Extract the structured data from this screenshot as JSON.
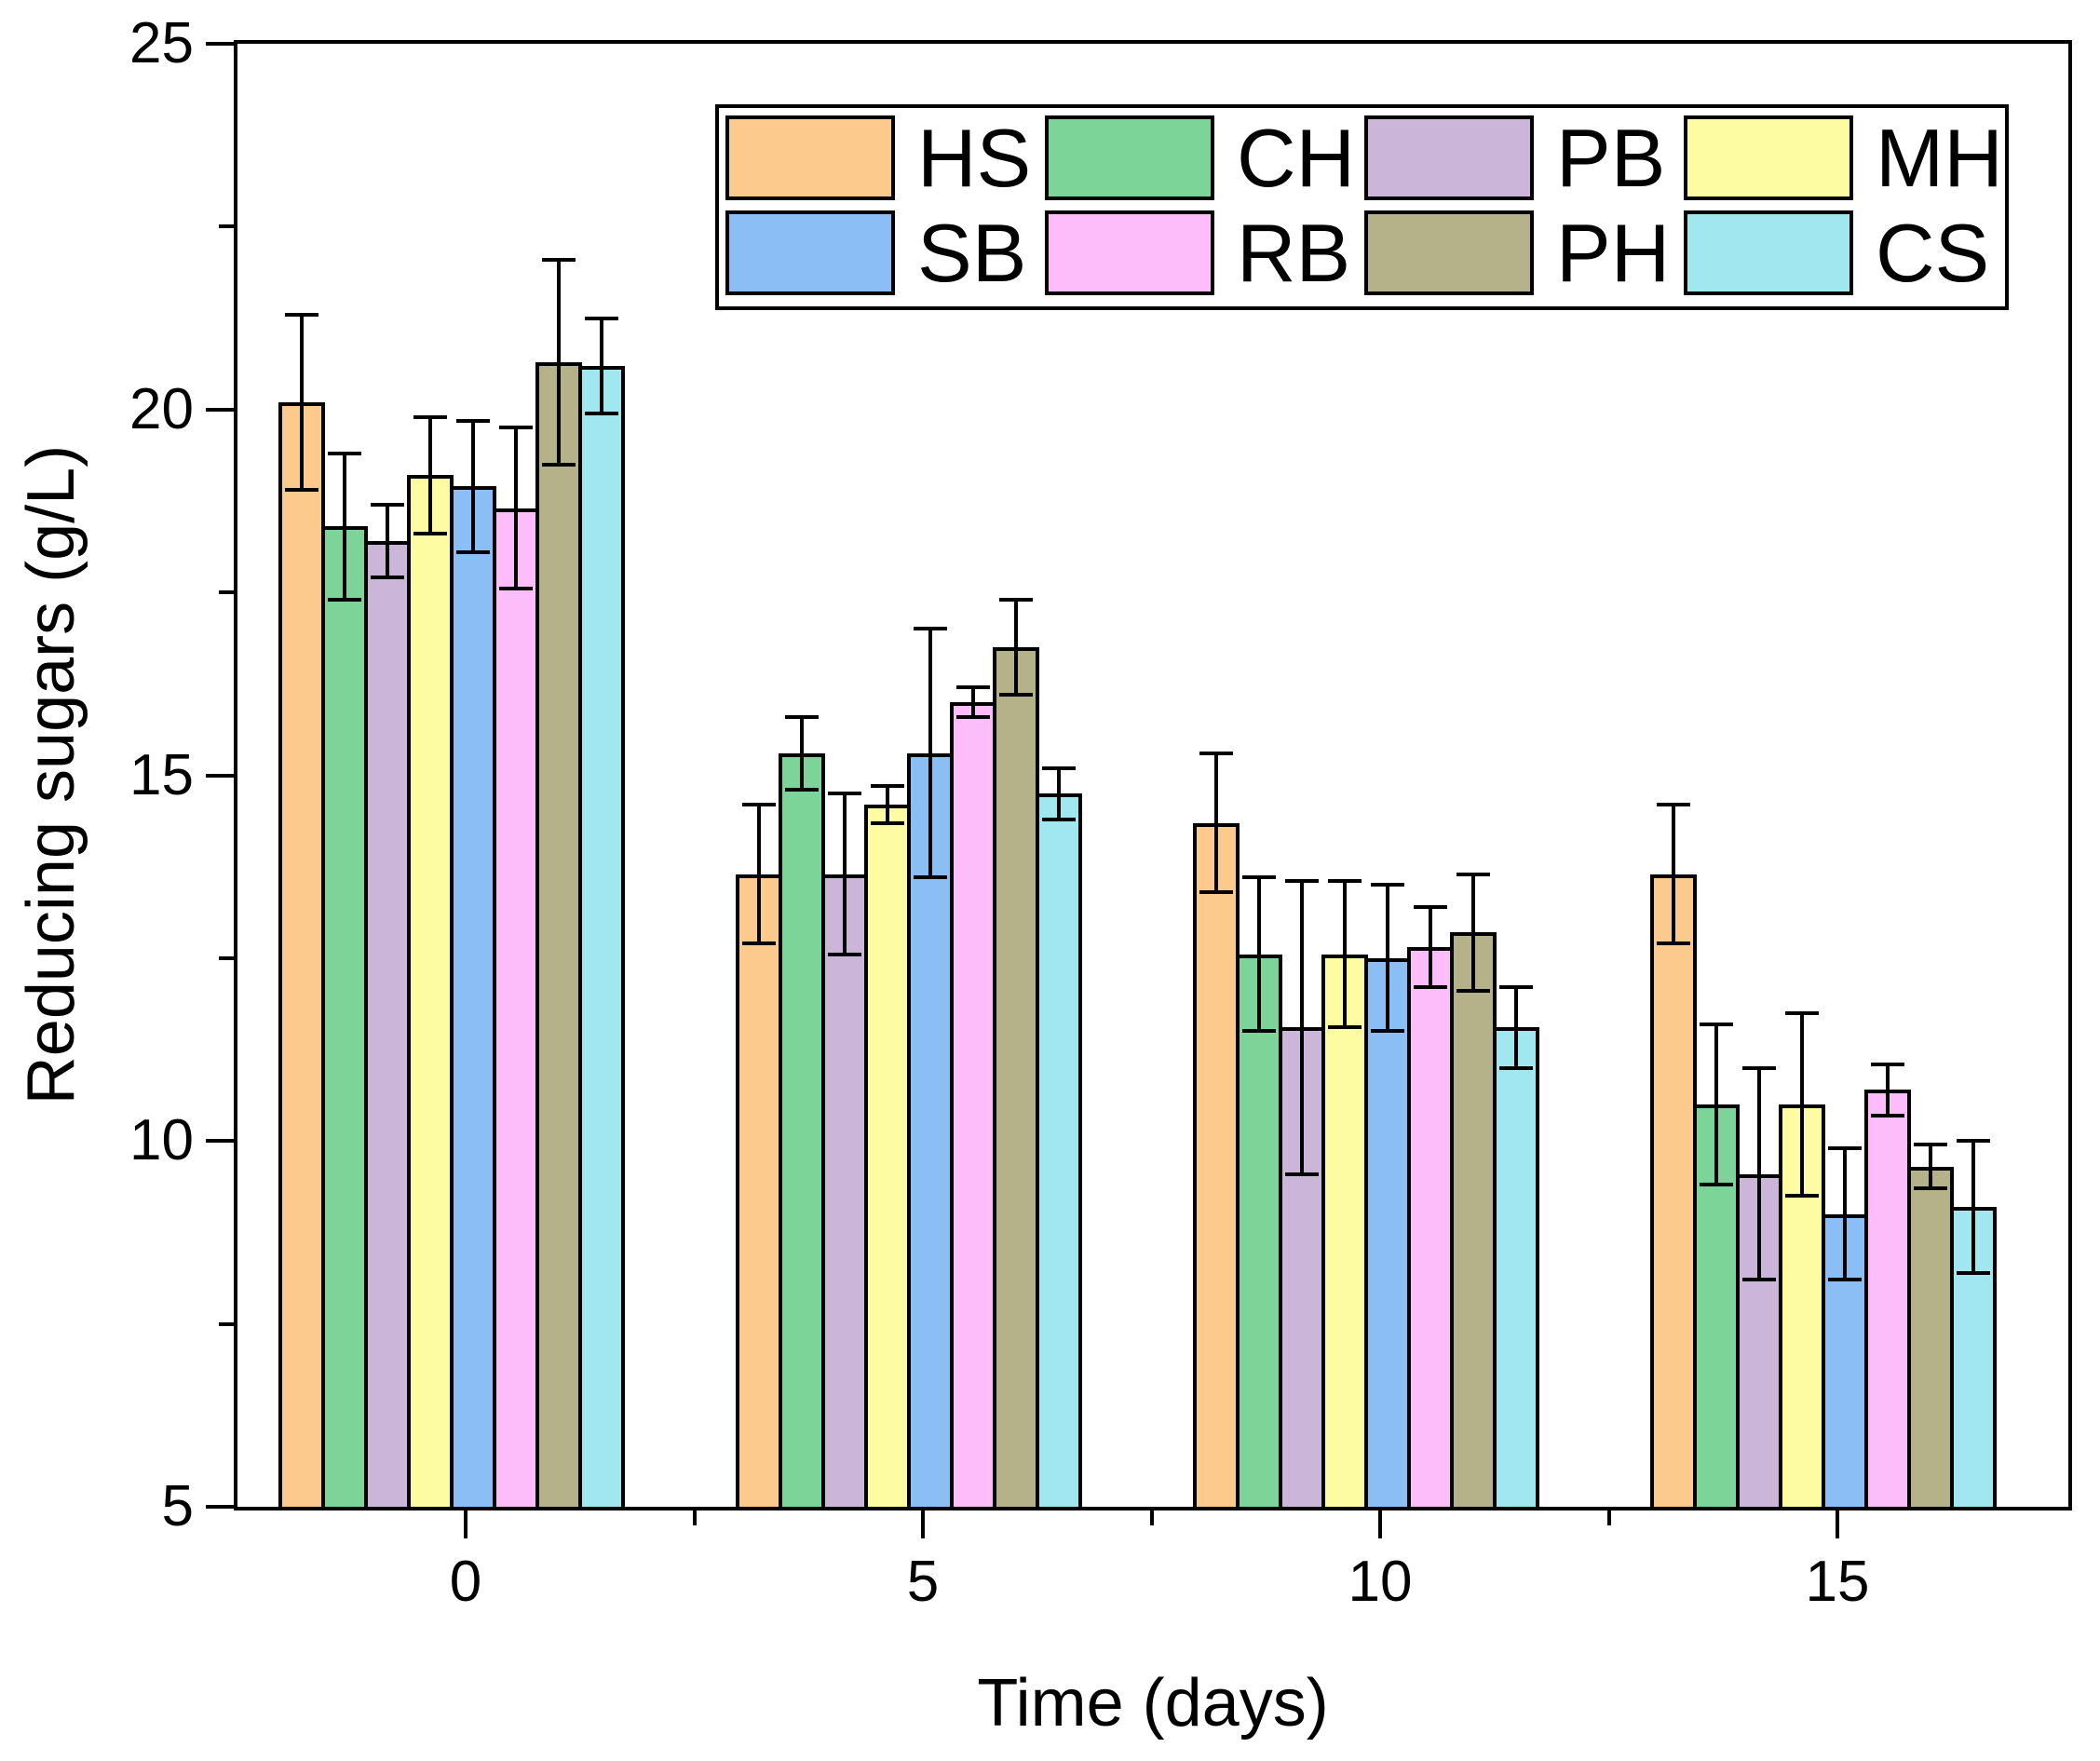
{
  "figure": {
    "x_axis_title": "Time (days)",
    "y_axis_title": "Reducing sugars (g/L)"
  },
  "chart_data": {
    "type": "bar",
    "title": "",
    "xlabel": "Time (days)",
    "ylabel": "Reducing sugars (g/L)",
    "categories": [
      "0",
      "5",
      "10",
      "15"
    ],
    "ylim": [
      5,
      25
    ],
    "y_major_ticks": [
      5,
      10,
      15,
      20,
      25
    ],
    "y_minor_ticks": [
      7.5,
      12.5,
      17.5,
      22.5
    ],
    "x_minor_ticks": [
      2.5,
      7.5,
      12.5
    ],
    "grid": false,
    "error_bars": true,
    "legend_position": "top-center-inside",
    "legend_rows": 2,
    "legend_columns": 4,
    "axis_color": "#000000",
    "background_color": "#ffffff",
    "series": [
      {
        "name": "HS",
        "color": "#FDCA8E",
        "values": [
          20.1,
          13.65,
          14.35,
          13.65
        ],
        "errors": [
          1.2,
          0.95,
          0.95,
          0.95
        ]
      },
      {
        "name": "CH",
        "color": "#7DD498",
        "values": [
          18.4,
          15.3,
          12.55,
          10.5
        ],
        "errors": [
          1.0,
          0.5,
          1.05,
          1.1
        ]
      },
      {
        "name": "PB",
        "color": "#CBB5D9",
        "values": [
          18.2,
          13.65,
          11.55,
          9.55
        ],
        "errors": [
          0.5,
          1.1,
          2.0,
          1.45
        ]
      },
      {
        "name": "MH",
        "color": "#FDFCA2",
        "values": [
          19.1,
          14.6,
          12.55,
          10.5
        ],
        "errors": [
          0.8,
          0.25,
          1.0,
          1.25
        ]
      },
      {
        "name": "SB",
        "color": "#8CBEF6",
        "values": [
          18.95,
          15.3,
          12.5,
          9.0
        ],
        "errors": [
          0.9,
          1.7,
          1.0,
          0.9
        ]
      },
      {
        "name": "RB",
        "color": "#FDBDFB",
        "values": [
          18.65,
          16.0,
          12.65,
          10.7
        ],
        "errors": [
          1.1,
          0.2,
          0.55,
          0.35
        ]
      },
      {
        "name": "PH",
        "color": "#B5B28A",
        "values": [
          20.65,
          16.75,
          12.85,
          9.65
        ],
        "errors": [
          1.4,
          0.65,
          0.8,
          0.3
        ]
      },
      {
        "name": "CS",
        "color": "#A0E7EF",
        "values": [
          20.6,
          14.75,
          11.55,
          9.1
        ],
        "errors": [
          0.65,
          0.35,
          0.55,
          0.9
        ]
      }
    ]
  }
}
